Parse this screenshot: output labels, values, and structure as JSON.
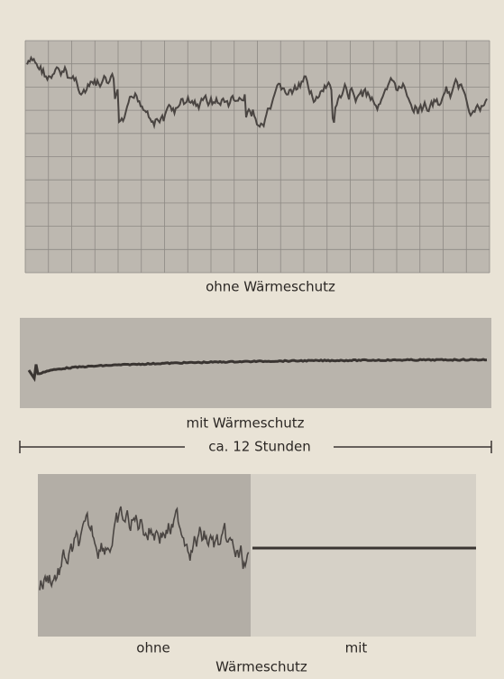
{
  "figure": {
    "panel_top": {
      "caption": "ohne Wärmeschutz"
    },
    "panel_middle": {
      "caption": "mit Wärmeschutz"
    },
    "timescale": {
      "label": "ca. 12 Stunden"
    },
    "panel_bottom": {
      "left_label": "ohne",
      "right_label": "mit",
      "caption": "Wärmeschutz"
    }
  }
}
